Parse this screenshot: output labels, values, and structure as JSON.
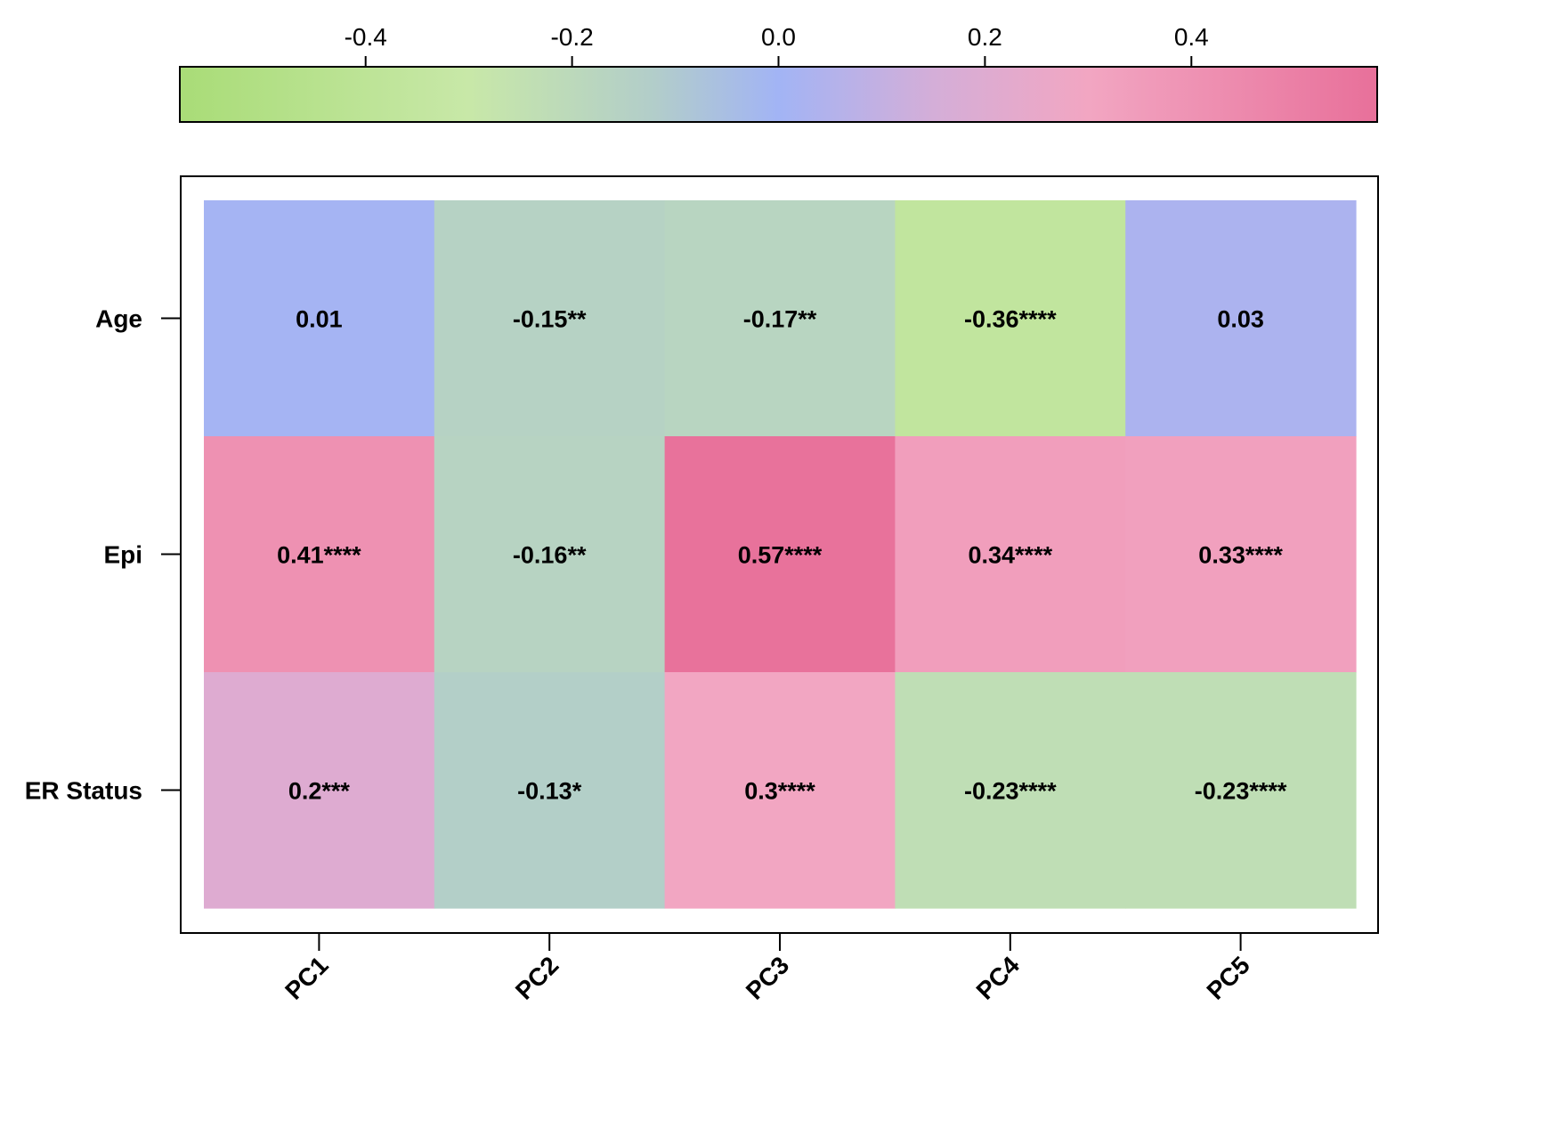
{
  "chart_data": {
    "type": "heatmap",
    "title": "",
    "xlabel": "",
    "ylabel": "",
    "x_categories": [
      "PC1",
      "PC2",
      "PC3",
      "PC4",
      "PC5"
    ],
    "y_categories": [
      "Age",
      "Epi",
      "ER Status"
    ],
    "values": [
      [
        0.01,
        -0.15,
        -0.17,
        -0.36,
        0.03
      ],
      [
        0.41,
        -0.16,
        0.57,
        0.34,
        0.33
      ],
      [
        0.2,
        -0.13,
        0.3,
        -0.23,
        -0.23
      ]
    ],
    "cell_labels": [
      [
        "0.01",
        "-0.15**",
        "-0.17**",
        "-0.36****",
        "0.03"
      ],
      [
        "0.41****",
        "-0.16**",
        "0.57****",
        "0.34****",
        "0.33****"
      ],
      [
        "0.2***",
        "-0.13*",
        "0.3****",
        "-0.23****",
        "-0.23****"
      ]
    ],
    "colorbar": {
      "range": [
        -0.58,
        0.58
      ],
      "ticks": [
        -0.4,
        -0.2,
        0.0,
        0.2,
        0.4
      ],
      "tick_labels": [
        "-0.4",
        "-0.2",
        "0.0",
        "0.2",
        "0.4"
      ],
      "placement": "top",
      "stops": [
        {
          "value": -0.58,
          "color": "#a9dc77"
        },
        {
          "value": -0.3,
          "color": "#c8e8a8"
        },
        {
          "value": -0.12,
          "color": "#b2cdca"
        },
        {
          "value": 0.0,
          "color": "#a2b4f5"
        },
        {
          "value": 0.15,
          "color": "#d4aed8"
        },
        {
          "value": 0.3,
          "color": "#f2a6c2"
        },
        {
          "value": 0.58,
          "color": "#e8709a"
        }
      ]
    },
    "grid": false
  }
}
